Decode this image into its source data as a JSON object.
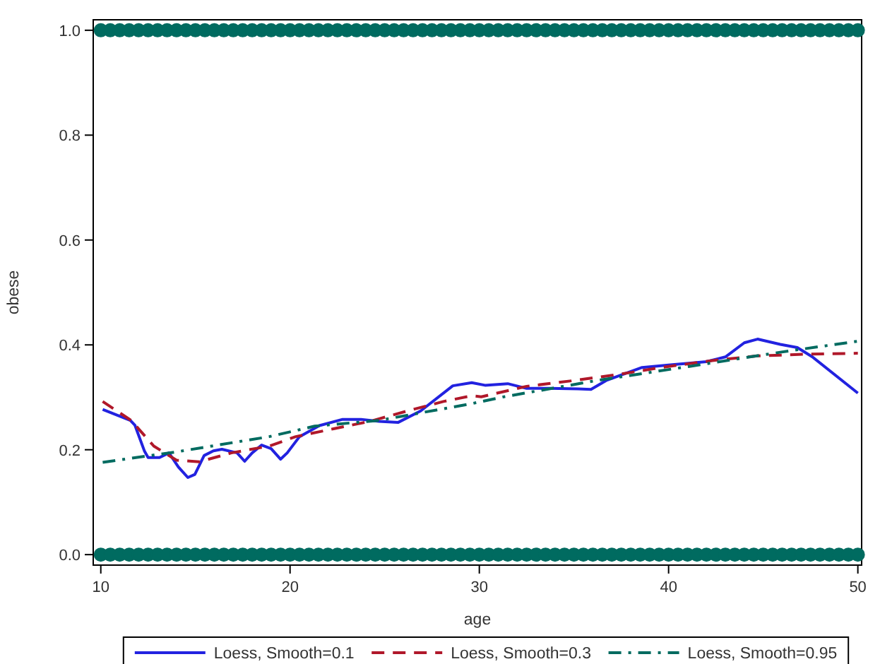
{
  "chart_data": {
    "type": "line",
    "xlabel": "age",
    "ylabel": "obese",
    "xlim": [
      9.6,
      50.2
    ],
    "ylim": [
      -0.02,
      1.02
    ],
    "xticks": [
      10,
      20,
      30,
      40,
      50
    ],
    "yticks": [
      {
        "value": 0,
        "label": "0.0"
      },
      {
        "value": 0.2,
        "label": "0.2"
      },
      {
        "value": 0.4,
        "label": "0.4"
      },
      {
        "value": 0.6,
        "label": "0.6"
      },
      {
        "value": 0.8,
        "label": "0.8"
      },
      {
        "value": 1,
        "label": "1.0"
      }
    ],
    "grid": false,
    "legend": "bottom",
    "series": [
      {
        "type": "scatter",
        "marker": "circle",
        "color": "#006b60",
        "x": [
          10,
          10.5,
          11,
          11.5,
          12,
          12.5,
          13,
          13.5,
          14,
          14.5,
          15,
          15.5,
          16,
          16.5,
          17,
          17.5,
          18,
          18.5,
          19,
          19.5,
          20,
          20.5,
          21,
          21.5,
          22,
          22.5,
          23,
          23.5,
          24,
          24.5,
          25,
          25.5,
          26,
          26.5,
          27,
          27.5,
          28,
          28.5,
          29,
          29.5,
          30,
          30.5,
          31,
          31.5,
          32,
          32.5,
          33,
          33.5,
          34,
          34.5,
          35,
          35.5,
          36,
          36.5,
          37,
          37.5,
          38,
          38.5,
          39,
          39.5,
          40,
          40.5,
          41,
          41.5,
          42,
          42.5,
          43,
          43.5,
          44,
          44.5,
          45,
          45.5,
          46,
          46.5,
          47,
          47.5,
          48,
          48.5,
          49,
          49.5,
          50,
          10,
          10.5,
          11,
          11.5,
          12,
          12.5,
          13,
          13.5,
          14,
          14.5,
          15,
          15.5,
          16,
          16.5,
          17,
          17.5,
          18,
          18.5,
          19,
          19.5,
          20,
          20.5,
          21,
          21.5,
          22,
          22.5,
          23,
          23.5,
          24,
          24.5,
          25,
          25.5,
          26,
          26.5,
          27,
          27.5,
          28,
          28.5,
          29,
          29.5,
          30,
          30.5,
          31,
          31.5,
          32,
          32.5,
          33,
          33.5,
          34,
          34.5,
          35,
          35.5,
          36,
          36.5,
          37,
          37.5,
          38,
          38.5,
          39,
          39.5,
          40,
          40.5,
          41,
          41.5,
          42,
          42.5,
          43,
          43.5,
          44,
          44.5,
          45,
          45.5,
          46,
          46.5,
          47,
          47.5,
          48,
          48.5,
          49,
          49.5,
          50
        ],
        "values": [
          0,
          0,
          0,
          0,
          0,
          0,
          0,
          0,
          0,
          0,
          0,
          0,
          0,
          0,
          0,
          0,
          0,
          0,
          0,
          0,
          0,
          0,
          0,
          0,
          0,
          0,
          0,
          0,
          0,
          0,
          0,
          0,
          0,
          0,
          0,
          0,
          0,
          0,
          0,
          0,
          0,
          0,
          0,
          0,
          0,
          0,
          0,
          0,
          0,
          0,
          0,
          0,
          0,
          0,
          0,
          0,
          0,
          0,
          0,
          0,
          0,
          0,
          0,
          0,
          0,
          0,
          0,
          0,
          0,
          0,
          0,
          0,
          0,
          0,
          0,
          0,
          0,
          0,
          0,
          0,
          0,
          1,
          1,
          1,
          1,
          1,
          1,
          1,
          1,
          1,
          1,
          1,
          1,
          1,
          1,
          1,
          1,
          1,
          1,
          1,
          1,
          1,
          1,
          1,
          1,
          1,
          1,
          1,
          1,
          1,
          1,
          1,
          1,
          1,
          1,
          1,
          1,
          1,
          1,
          1,
          1,
          1,
          1,
          1,
          1,
          1,
          1,
          1,
          1,
          1,
          1,
          1,
          1,
          1,
          1,
          1,
          1,
          1,
          1,
          1,
          1,
          1,
          1,
          1,
          1,
          1,
          1,
          1,
          1,
          1,
          1,
          1,
          1,
          1,
          1,
          1,
          1,
          1,
          1,
          1,
          1,
          1
        ]
      },
      {
        "name": "Loess, Smooth=0.1",
        "color": "#2222e0",
        "line_style": "solid",
        "x": [
          10.1,
          11.56,
          11.8,
          12.3,
          12.5,
          13.1,
          13.6,
          14.1,
          14.6,
          14.97,
          15.46,
          15.95,
          16.4,
          17.2,
          17.6,
          18.0,
          18.5,
          19.0,
          19.5,
          19.85,
          20.5,
          21.55,
          22.78,
          23.75,
          24.7,
          25.7,
          26.9,
          28.6,
          29.6,
          30.3,
          31.5,
          32.5,
          33.7,
          35.2,
          35.9,
          36.7,
          38.6,
          40.1,
          42.0,
          43.0,
          44.0,
          44.7,
          45.9,
          46.8,
          47.6,
          50.0
        ],
        "values": [
          0.277,
          0.256,
          0.247,
          0.198,
          0.185,
          0.185,
          0.194,
          0.167,
          0.147,
          0.153,
          0.189,
          0.198,
          0.201,
          0.194,
          0.178,
          0.194,
          0.209,
          0.202,
          0.182,
          0.194,
          0.225,
          0.246,
          0.258,
          0.258,
          0.254,
          0.252,
          0.274,
          0.322,
          0.328,
          0.323,
          0.326,
          0.317,
          0.317,
          0.316,
          0.315,
          0.332,
          0.357,
          0.362,
          0.368,
          0.377,
          0.404,
          0.411,
          0.401,
          0.395,
          0.377,
          0.308
        ]
      },
      {
        "name": "Loess, Smooth=0.3",
        "color": "#b0182a",
        "line_style": "dashed",
        "x": [
          10.1,
          11.6,
          12.8,
          14.0,
          15.2,
          16.9,
          18.9,
          20.3,
          22.3,
          24.2,
          26.2,
          28.1,
          29.6,
          30.1,
          32.5,
          35.0,
          37.4,
          39.8,
          42.3,
          44.7,
          47.1,
          50.0
        ],
        "values": [
          0.292,
          0.256,
          0.207,
          0.18,
          0.177,
          0.194,
          0.207,
          0.225,
          0.24,
          0.254,
          0.274,
          0.292,
          0.303,
          0.301,
          0.321,
          0.332,
          0.344,
          0.358,
          0.37,
          0.379,
          0.382,
          0.384
        ]
      },
      {
        "name": "Loess, Smooth=0.95",
        "color": "#006b60",
        "line_style": "dashdot",
        "x": [
          10.1,
          14.0,
          18.9,
          21.3,
          24.7,
          29.6,
          31.3,
          36.2,
          41.1,
          45.9,
          50.0
        ],
        "values": [
          0.176,
          0.196,
          0.225,
          0.245,
          0.256,
          0.288,
          0.301,
          0.332,
          0.359,
          0.386,
          0.407
        ]
      }
    ]
  }
}
